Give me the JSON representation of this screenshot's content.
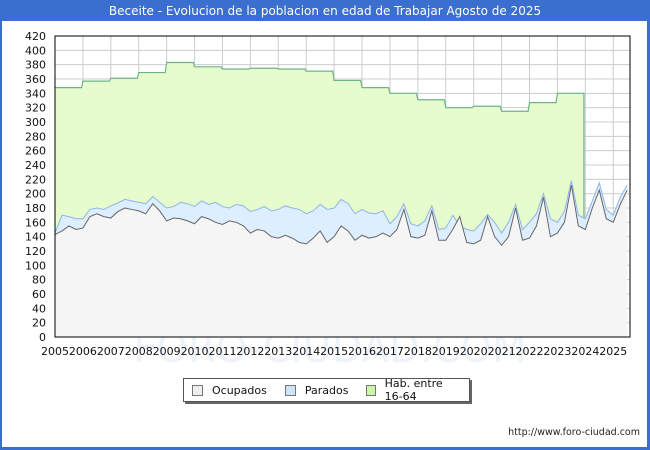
{
  "title": "Beceite - Evolucion de la poblacion en edad de Trabajar Agosto de 2025",
  "footer": "http://www.foro-ciudad.com",
  "watermark": "FORO-CIUDAD.COM",
  "legend": [
    {
      "label": "Ocupados",
      "color": "#eeeeee"
    },
    {
      "label": "Parados",
      "color": "#cfe3fb"
    },
    {
      "label": "Hab. entre 16-64",
      "color": "#ccf5a8"
    }
  ],
  "colors": {
    "header": "#3a6fd0",
    "hab_fill": "#e6fccc",
    "hab_line": "#6db38a",
    "parados_fill": "#ddeeff",
    "parados_line": "#8fb5e8",
    "ocupados_fill": "#f5f5f5",
    "ocupados_line": "#666666",
    "grid": "#cccccc"
  },
  "chart_data": {
    "type": "area",
    "title": "Beceite - Evolucion de la poblacion en edad de Trabajar Agosto de 2025",
    "xlabel": "",
    "ylabel": "",
    "ylim": [
      0,
      420
    ],
    "yticks": [
      0,
      20,
      40,
      60,
      80,
      100,
      120,
      140,
      160,
      180,
      200,
      220,
      240,
      260,
      280,
      300,
      320,
      340,
      360,
      380,
      400,
      420
    ],
    "xticks": [
      "2005",
      "2006",
      "2007",
      "2008",
      "2009",
      "2010",
      "2011",
      "2012",
      "2013",
      "2014",
      "2015",
      "2016",
      "2017",
      "2018",
      "2019",
      "2020",
      "2021",
      "2022",
      "2023",
      "2024",
      "2025"
    ],
    "grid": true,
    "legend_position": "bottom",
    "series": [
      {
        "name": "Hab. entre 16-64",
        "x": [
          2005,
          2006,
          2007,
          2008,
          2009,
          2010,
          2011,
          2012,
          2013,
          2014,
          2015,
          2016,
          2017,
          2018,
          2019,
          2020,
          2021,
          2022,
          2023
        ],
        "values": [
          348,
          357,
          361,
          369,
          383,
          377,
          374,
          375,
          374,
          371,
          358,
          348,
          340,
          331,
          320,
          322,
          315,
          327,
          340
        ]
      },
      {
        "name": "Parados + Ocupados",
        "x": [
          2005.0,
          2005.25,
          2005.5,
          2005.75,
          2006.0,
          2006.25,
          2006.5,
          2006.75,
          2007.0,
          2007.25,
          2007.5,
          2007.75,
          2008.0,
          2008.25,
          2008.5,
          2008.75,
          2009.0,
          2009.25,
          2009.5,
          2009.75,
          2010.0,
          2010.25,
          2010.5,
          2010.75,
          2011.0,
          2011.25,
          2011.5,
          2011.75,
          2012.0,
          2012.25,
          2012.5,
          2012.75,
          2013.0,
          2013.25,
          2013.5,
          2013.75,
          2014.0,
          2014.25,
          2014.5,
          2014.75,
          2015.0,
          2015.25,
          2015.5,
          2015.75,
          2016.0,
          2016.25,
          2016.5,
          2016.75,
          2017.0,
          2017.25,
          2017.5,
          2017.75,
          2018.0,
          2018.25,
          2018.5,
          2018.75,
          2019.0,
          2019.25,
          2019.5,
          2019.75,
          2020.0,
          2020.25,
          2020.5,
          2020.75,
          2021.0,
          2021.25,
          2021.5,
          2021.75,
          2022.0,
          2022.25,
          2022.5,
          2022.75,
          2023.0,
          2023.25,
          2023.5,
          2023.75,
          2024.0,
          2024.25,
          2024.5,
          2024.75,
          2025.0,
          2025.25,
          2025.5
        ],
        "values": [
          145,
          170,
          168,
          165,
          165,
          178,
          180,
          178,
          183,
          187,
          192,
          190,
          188,
          186,
          196,
          188,
          180,
          182,
          188,
          186,
          182,
          190,
          185,
          188,
          182,
          180,
          185,
          183,
          175,
          178,
          182,
          176,
          178,
          183,
          180,
          178,
          172,
          176,
          185,
          178,
          180,
          192,
          186,
          172,
          178,
          173,
          172,
          176,
          158,
          168,
          186,
          158,
          155,
          162,
          183,
          150,
          152,
          170,
          155,
          150,
          148,
          158,
          171,
          160,
          145,
          160,
          185,
          150,
          160,
          172,
          200,
          165,
          160,
          175,
          218,
          170,
          165,
          190,
          215,
          178,
          170,
          195,
          212
        ]
      },
      {
        "name": "Ocupados",
        "x": [
          2005.0,
          2005.25,
          2005.5,
          2005.75,
          2006.0,
          2006.25,
          2006.5,
          2006.75,
          2007.0,
          2007.25,
          2007.5,
          2007.75,
          2008.0,
          2008.25,
          2008.5,
          2008.75,
          2009.0,
          2009.25,
          2009.5,
          2009.75,
          2010.0,
          2010.25,
          2010.5,
          2010.75,
          2011.0,
          2011.25,
          2011.5,
          2011.75,
          2012.0,
          2012.25,
          2012.5,
          2012.75,
          2013.0,
          2013.25,
          2013.5,
          2013.75,
          2014.0,
          2014.25,
          2014.5,
          2014.75,
          2015.0,
          2015.25,
          2015.5,
          2015.75,
          2016.0,
          2016.25,
          2016.5,
          2016.75,
          2017.0,
          2017.25,
          2017.5,
          2017.75,
          2018.0,
          2018.25,
          2018.5,
          2018.75,
          2019.0,
          2019.25,
          2019.5,
          2019.75,
          2020.0,
          2020.25,
          2020.5,
          2020.75,
          2021.0,
          2021.25,
          2021.5,
          2021.75,
          2022.0,
          2022.25,
          2022.5,
          2022.75,
          2023.0,
          2023.25,
          2023.5,
          2023.75,
          2024.0,
          2024.25,
          2024.5,
          2024.75,
          2025.0,
          2025.25,
          2025.5
        ],
        "values": [
          143,
          148,
          155,
          150,
          152,
          168,
          172,
          168,
          166,
          175,
          180,
          178,
          176,
          172,
          186,
          176,
          162,
          166,
          165,
          162,
          158,
          168,
          165,
          160,
          157,
          162,
          160,
          155,
          145,
          150,
          148,
          140,
          138,
          142,
          138,
          132,
          130,
          138,
          148,
          132,
          140,
          155,
          148,
          135,
          142,
          138,
          140,
          145,
          140,
          150,
          178,
          140,
          138,
          142,
          176,
          135,
          135,
          150,
          168,
          132,
          130,
          135,
          168,
          140,
          128,
          140,
          180,
          135,
          138,
          155,
          195,
          140,
          145,
          160,
          212,
          155,
          150,
          180,
          205,
          165,
          160,
          185,
          205
        ]
      }
    ]
  }
}
